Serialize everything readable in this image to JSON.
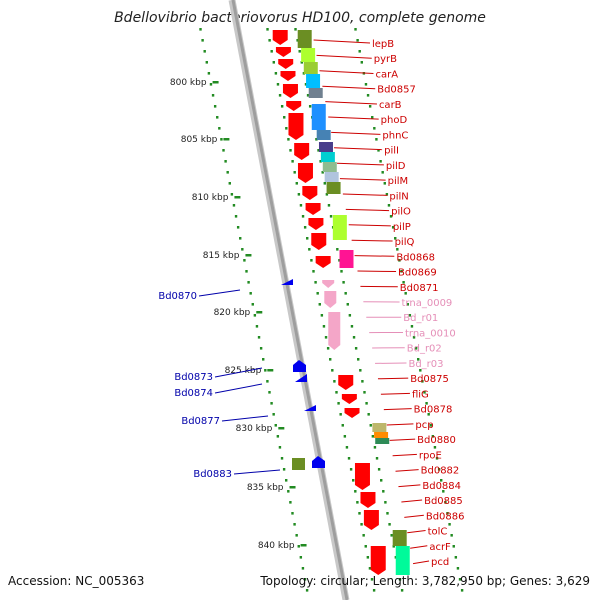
{
  "title": "Bdellovibrio bacteriovorus HD100, complete genome",
  "footer": {
    "accession": "Accession: NC_005363",
    "topology": "Topology: circular; Length: 3,782,950 bp; Genes: 3,629"
  },
  "colors": {
    "backbone": "#9e9e9e",
    "cds_forward": "#ff0000",
    "cds_reverse": "#0000ee",
    "rna": "#f4a6c8",
    "ticks": "#228b22",
    "label_forward": "#cc0000",
    "label_reverse": "#0000aa",
    "label_rna": "#e58fb8"
  },
  "ticks": [
    "800 kbp",
    "805 kbp",
    "810 kbp",
    "815 kbp",
    "820 kbp",
    "825 kbp",
    "830 kbp",
    "835 kbp",
    "840 kbp"
  ],
  "right_labels": [
    {
      "text": "lepB",
      "type": "cds"
    },
    {
      "text": "pyrB",
      "type": "cds"
    },
    {
      "text": "carA",
      "type": "cds"
    },
    {
      "text": "Bd0857",
      "type": "cds"
    },
    {
      "text": "carB",
      "type": "cds"
    },
    {
      "text": "phoD",
      "type": "cds"
    },
    {
      "text": "phnC",
      "type": "cds"
    },
    {
      "text": "pilI",
      "type": "cds"
    },
    {
      "text": "pilD",
      "type": "cds"
    },
    {
      "text": "pilM",
      "type": "cds"
    },
    {
      "text": "pilN",
      "type": "cds"
    },
    {
      "text": "pilO",
      "type": "cds"
    },
    {
      "text": "pilP",
      "type": "cds"
    },
    {
      "text": "pilQ",
      "type": "cds"
    },
    {
      "text": "Bd0868",
      "type": "cds"
    },
    {
      "text": "Bd0869",
      "type": "cds"
    },
    {
      "text": "Bd0871",
      "type": "cds"
    },
    {
      "text": "trna_0009",
      "type": "rna"
    },
    {
      "text": "Bd_r01",
      "type": "rna"
    },
    {
      "text": "trna_0010",
      "type": "rna"
    },
    {
      "text": "Bd_r02",
      "type": "rna"
    },
    {
      "text": "Bd_r03",
      "type": "rna"
    },
    {
      "text": "Bd0875",
      "type": "cds"
    },
    {
      "text": "fliG",
      "type": "cds"
    },
    {
      "text": "Bd0878",
      "type": "cds"
    },
    {
      "text": "pcp",
      "type": "cds"
    },
    {
      "text": "Bd0880",
      "type": "cds"
    },
    {
      "text": "rpoE",
      "type": "cds"
    },
    {
      "text": "Bd0882",
      "type": "cds"
    },
    {
      "text": "Bd0884",
      "type": "cds"
    },
    {
      "text": "Bd0885",
      "type": "cds"
    },
    {
      "text": "Bd0886",
      "type": "cds"
    },
    {
      "text": "tolC",
      "type": "cds"
    },
    {
      "text": "acrF",
      "type": "cds"
    },
    {
      "text": "pcd",
      "type": "cds"
    }
  ],
  "left_labels": [
    "Bd0870",
    "Bd0873",
    "Bd0874",
    "Bd0877",
    "Bd0883"
  ]
}
